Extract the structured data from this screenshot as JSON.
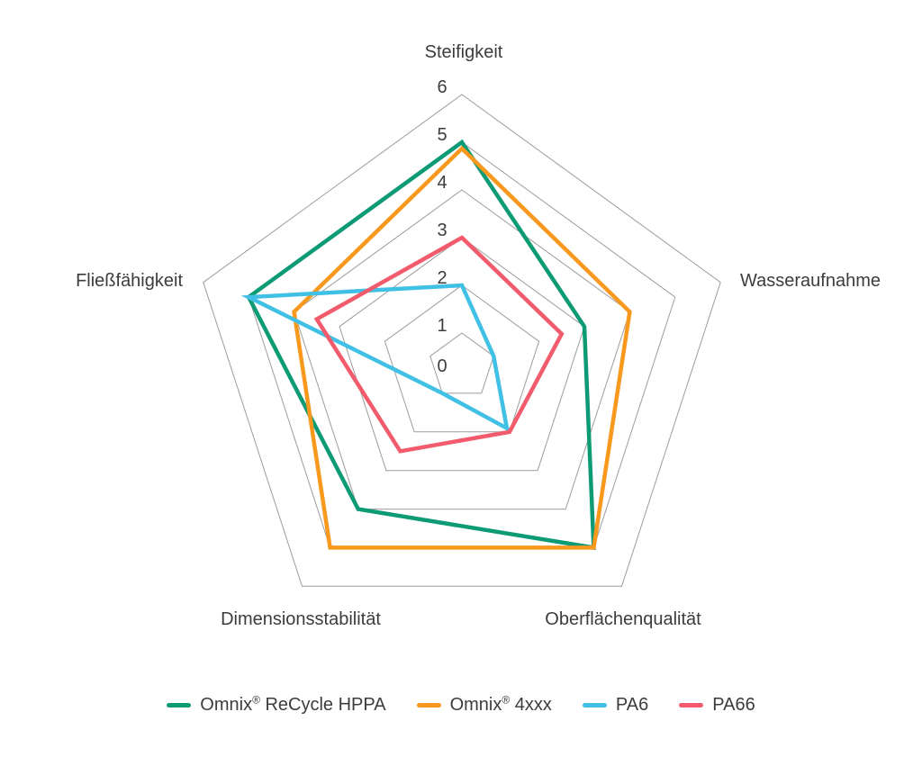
{
  "chart_data": {
    "type": "radar",
    "shape": "pentagon",
    "axes": [
      "Steifigkeit",
      "Wasseraufnahme",
      "Oberflächenqualität",
      "Dimensionsstabilität",
      "Fließfähigkeit"
    ],
    "axis_range": [
      0,
      6
    ],
    "tick_labels": [
      "0",
      "1",
      "2",
      "3",
      "4",
      "5",
      "6"
    ],
    "grid": "concentric-pentagon-rings",
    "legend_position": "bottom",
    "series": [
      {
        "name": "Omnix® ReCycle HPPA",
        "color": "#0D9B76",
        "values": [
          5,
          3,
          5,
          4,
          5
        ]
      },
      {
        "name": "Omnix® 4xxx",
        "color": "#F8981D",
        "values": [
          5,
          4,
          5,
          5,
          4
        ]
      },
      {
        "name": "PA6",
        "color": "#41C0E6",
        "values": [
          2,
          1,
          2,
          1,
          5
        ]
      },
      {
        "name": "PA66",
        "color": "#F15B6C",
        "values": [
          3,
          2.5,
          2,
          2.5,
          3.5
        ]
      }
    ]
  },
  "colors": {
    "grid_line": "#9C9C9C",
    "text": "#3C3C3C",
    "background": "#FFFFFF"
  }
}
